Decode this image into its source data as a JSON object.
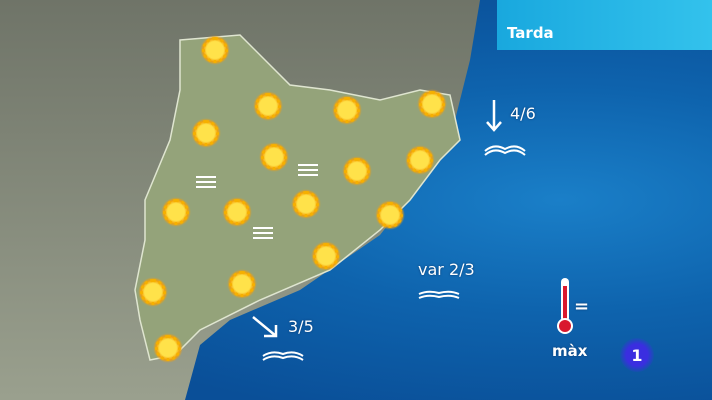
{
  "period_label": "Tarda",
  "sea": [
    {
      "wind_direction": "south",
      "value": "4/6"
    },
    {
      "wind_direction": "variable",
      "value": "var 2/3"
    },
    {
      "wind_direction": "south-east",
      "value": "3/5"
    }
  ],
  "temperature": {
    "label": "màx",
    "trend": "="
  },
  "channel_logo": "1",
  "icons": {
    "sun": "sun-icon",
    "fog": "fog-icon",
    "thermometer": "thermometer-icon",
    "waves": "waves-icon"
  },
  "colors": {
    "sea": "#0e63ad",
    "panel": "#19a8de",
    "land": "#8f9a80",
    "sun": "#f6b000",
    "thermometer": "#d9182e"
  }
}
